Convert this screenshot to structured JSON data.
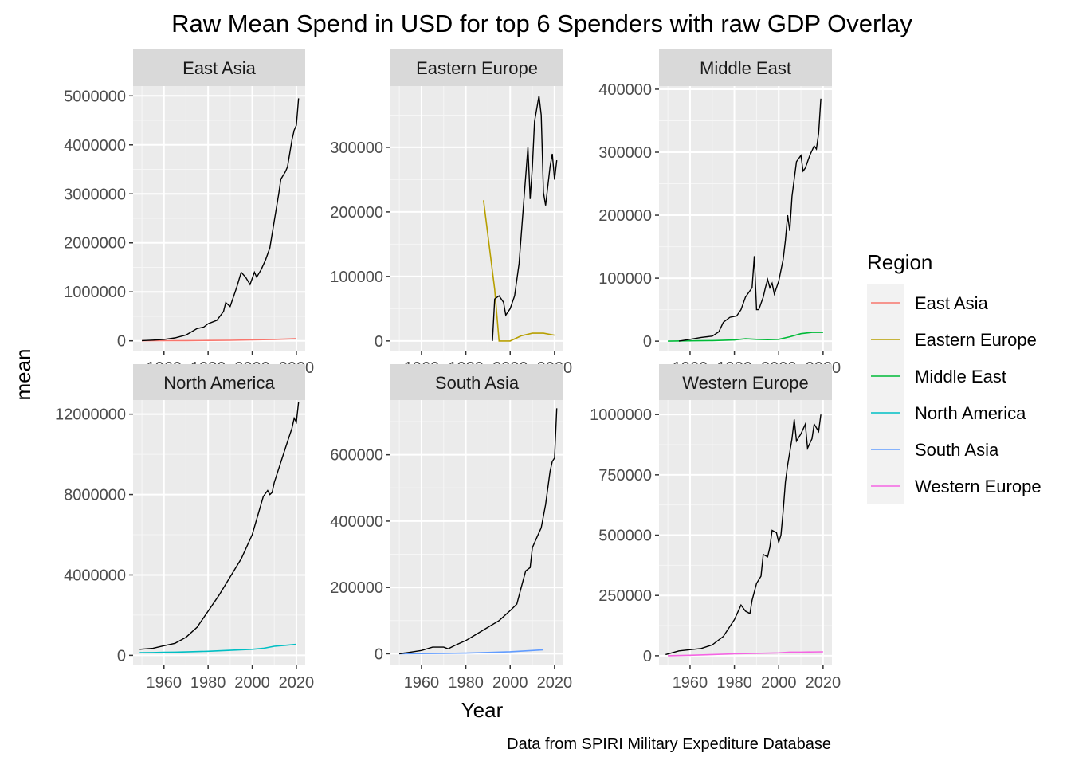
{
  "chart_data": {
    "type": "line",
    "title": "Raw Mean Spend in USD for top 6 Spenders with raw GDP Overlay",
    "xlabel": "Year",
    "ylabel": "mean",
    "caption": "Data from SPIRI Military Expediture Database",
    "legend": {
      "title": "Region",
      "placement": "right",
      "entries": [
        {
          "name": "East Asia",
          "color": "#F8766D"
        },
        {
          "name": "Eastern Europe",
          "color": "#B79F00"
        },
        {
          "name": "Middle East",
          "color": "#00BA38"
        },
        {
          "name": "North America",
          "color": "#00BFC4"
        },
        {
          "name": "South Asia",
          "color": "#619CFF"
        },
        {
          "name": "Western Europe",
          "color": "#F564E3"
        }
      ]
    },
    "x_ticks": [
      1960,
      1980,
      2000,
      2020
    ],
    "xlim": [
      1946,
      2024
    ],
    "grid": true,
    "panels": [
      {
        "name": "East Asia",
        "ylim": [
          -200000,
          5200000
        ],
        "y_ticks": [
          0,
          1000000,
          2000000,
          3000000,
          4000000,
          5000000
        ],
        "y_tick_labels": [
          "0",
          "1000000",
          "2000000",
          "3000000",
          "4000000",
          "5000000"
        ],
        "gdp": [
          [
            1950,
            5000
          ],
          [
            1955,
            15000
          ],
          [
            1960,
            30000
          ],
          [
            1965,
            60000
          ],
          [
            1970,
            120000
          ],
          [
            1975,
            250000
          ],
          [
            1978,
            280000
          ],
          [
            1980,
            350000
          ],
          [
            1984,
            420000
          ],
          [
            1987,
            600000
          ],
          [
            1988,
            780000
          ],
          [
            1990,
            700000
          ],
          [
            1993,
            1100000
          ],
          [
            1995,
            1400000
          ],
          [
            1997,
            1300000
          ],
          [
            1999,
            1150000
          ],
          [
            2001,
            1400000
          ],
          [
            2002,
            1300000
          ],
          [
            2004,
            1450000
          ],
          [
            2006,
            1650000
          ],
          [
            2008,
            1900000
          ],
          [
            2010,
            2450000
          ],
          [
            2012,
            3000000
          ],
          [
            2013,
            3300000
          ],
          [
            2015,
            3450000
          ],
          [
            2016,
            3550000
          ],
          [
            2018,
            4100000
          ],
          [
            2019,
            4300000
          ],
          [
            2020,
            4400000
          ],
          [
            2021,
            4950000
          ]
        ],
        "spend": [
          [
            1950,
            2000
          ],
          [
            1960,
            3000
          ],
          [
            1970,
            5000
          ],
          [
            1980,
            8000
          ],
          [
            1990,
            12000
          ],
          [
            2000,
            20000
          ],
          [
            2010,
            30000
          ],
          [
            2020,
            45000
          ]
        ],
        "spend_color": "#F8766D"
      },
      {
        "name": "Eastern Europe",
        "ylim": [
          -15000,
          395000
        ],
        "y_ticks": [
          0,
          100000,
          200000,
          300000
        ],
        "y_tick_labels": [
          "0",
          "100000",
          "200000",
          "300000"
        ],
        "gdp": [
          [
            1992,
            0
          ],
          [
            1993,
            65000
          ],
          [
            1995,
            70000
          ],
          [
            1997,
            60000
          ],
          [
            1998,
            40000
          ],
          [
            2000,
            50000
          ],
          [
            2002,
            70000
          ],
          [
            2004,
            120000
          ],
          [
            2006,
            210000
          ],
          [
            2008,
            300000
          ],
          [
            2009,
            220000
          ],
          [
            2010,
            270000
          ],
          [
            2011,
            340000
          ],
          [
            2013,
            380000
          ],
          [
            2014,
            350000
          ],
          [
            2015,
            230000
          ],
          [
            2016,
            210000
          ],
          [
            2018,
            270000
          ],
          [
            2019,
            290000
          ],
          [
            2020,
            250000
          ],
          [
            2021,
            280000
          ]
        ],
        "spend": [
          [
            1988,
            218000
          ],
          [
            1993,
            80000
          ],
          [
            1995,
            0
          ],
          [
            1998,
            0
          ],
          [
            2000,
            0
          ],
          [
            2005,
            8000
          ],
          [
            2010,
            12000
          ],
          [
            2015,
            12000
          ],
          [
            2020,
            9000
          ]
        ],
        "spend_color": "#B79F00"
      },
      {
        "name": "Middle East",
        "ylim": [
          -15000,
          405000
        ],
        "y_ticks": [
          0,
          100000,
          200000,
          300000,
          400000
        ],
        "y_tick_labels": [
          "0",
          "100000",
          "200000",
          "300000",
          "400000"
        ],
        "gdp": [
          [
            1955,
            0
          ],
          [
            1960,
            3000
          ],
          [
            1965,
            6000
          ],
          [
            1970,
            8000
          ],
          [
            1973,
            15000
          ],
          [
            1975,
            30000
          ],
          [
            1978,
            38000
          ],
          [
            1981,
            40000
          ],
          [
            1983,
            50000
          ],
          [
            1985,
            70000
          ],
          [
            1987,
            80000
          ],
          [
            1988,
            85000
          ],
          [
            1989,
            135000
          ],
          [
            1990,
            50000
          ],
          [
            1991,
            50000
          ],
          [
            1993,
            70000
          ],
          [
            1994,
            85000
          ],
          [
            1995,
            98000
          ],
          [
            1996,
            85000
          ],
          [
            1997,
            92000
          ],
          [
            1998,
            75000
          ],
          [
            2000,
            95000
          ],
          [
            2002,
            130000
          ],
          [
            2003,
            160000
          ],
          [
            2004,
            200000
          ],
          [
            2005,
            175000
          ],
          [
            2006,
            230000
          ],
          [
            2008,
            285000
          ],
          [
            2010,
            295000
          ],
          [
            2011,
            270000
          ],
          [
            2012,
            275000
          ],
          [
            2014,
            295000
          ],
          [
            2016,
            310000
          ],
          [
            2017,
            305000
          ],
          [
            2018,
            330000
          ],
          [
            2019,
            385000
          ]
        ],
        "spend": [
          [
            1950,
            0
          ],
          [
            1960,
            500
          ],
          [
            1970,
            1000
          ],
          [
            1980,
            2000
          ],
          [
            1985,
            4000
          ],
          [
            1990,
            3000
          ],
          [
            1995,
            2500
          ],
          [
            2000,
            3000
          ],
          [
            2005,
            7000
          ],
          [
            2010,
            12000
          ],
          [
            2015,
            14000
          ],
          [
            2020,
            14000
          ]
        ],
        "spend_color": "#00BA38"
      },
      {
        "name": "North America",
        "ylim": [
          -500000,
          12700000
        ],
        "y_ticks": [
          0,
          4000000,
          8000000,
          12000000
        ],
        "y_tick_labels": [
          "0",
          "4000000",
          "8000000",
          "12000000"
        ],
        "gdp": [
          [
            1949,
            300000
          ],
          [
            1955,
            350000
          ],
          [
            1960,
            480000
          ],
          [
            1965,
            600000
          ],
          [
            1970,
            900000
          ],
          [
            1975,
            1400000
          ],
          [
            1980,
            2200000
          ],
          [
            1985,
            3000000
          ],
          [
            1990,
            3900000
          ],
          [
            1995,
            4800000
          ],
          [
            2000,
            6000000
          ],
          [
            2005,
            7900000
          ],
          [
            2007,
            8200000
          ],
          [
            2008,
            8000000
          ],
          [
            2009,
            8100000
          ],
          [
            2010,
            8600000
          ],
          [
            2015,
            10300000
          ],
          [
            2018,
            11300000
          ],
          [
            2019,
            11800000
          ],
          [
            2020,
            11600000
          ],
          [
            2021,
            12600000
          ]
        ],
        "spend": [
          [
            1949,
            130000
          ],
          [
            1955,
            140000
          ],
          [
            1960,
            150000
          ],
          [
            1965,
            160000
          ],
          [
            1970,
            170000
          ],
          [
            1980,
            200000
          ],
          [
            1990,
            250000
          ],
          [
            2000,
            300000
          ],
          [
            2005,
            350000
          ],
          [
            2010,
            450000
          ],
          [
            2015,
            500000
          ],
          [
            2020,
            550000
          ]
        ],
        "spend_color": "#00BFC4"
      },
      {
        "name": "South Asia",
        "ylim": [
          -35000,
          765000
        ],
        "y_ticks": [
          0,
          200000,
          400000,
          600000
        ],
        "y_tick_labels": [
          "0",
          "200000",
          "400000",
          "600000"
        ],
        "gdp": [
          [
            1950,
            0
          ],
          [
            1955,
            5000
          ],
          [
            1960,
            10000
          ],
          [
            1965,
            20000
          ],
          [
            1970,
            20000
          ],
          [
            1972,
            15000
          ],
          [
            1975,
            25000
          ],
          [
            1980,
            40000
          ],
          [
            1985,
            60000
          ],
          [
            1990,
            80000
          ],
          [
            1995,
            100000
          ],
          [
            2000,
            130000
          ],
          [
            2003,
            150000
          ],
          [
            2005,
            200000
          ],
          [
            2007,
            250000
          ],
          [
            2009,
            260000
          ],
          [
            2010,
            320000
          ],
          [
            2012,
            350000
          ],
          [
            2014,
            380000
          ],
          [
            2016,
            450000
          ],
          [
            2018,
            550000
          ],
          [
            2019,
            580000
          ],
          [
            2020,
            590000
          ],
          [
            2021,
            740000
          ]
        ],
        "spend": [
          [
            1950,
            0
          ],
          [
            1960,
            500
          ],
          [
            1970,
            1000
          ],
          [
            1980,
            2000
          ],
          [
            1990,
            4000
          ],
          [
            2000,
            6000
          ],
          [
            2010,
            10000
          ],
          [
            2015,
            12000
          ]
        ],
        "spend_color": "#619CFF"
      },
      {
        "name": "Western Europe",
        "ylim": [
          -40000,
          1060000
        ],
        "y_ticks": [
          0,
          250000,
          500000,
          750000,
          1000000
        ],
        "y_tick_labels": [
          "0",
          "250000",
          "500000",
          "750000",
          "1000000"
        ],
        "gdp": [
          [
            1949,
            5000
          ],
          [
            1955,
            20000
          ],
          [
            1960,
            25000
          ],
          [
            1965,
            30000
          ],
          [
            1970,
            45000
          ],
          [
            1975,
            80000
          ],
          [
            1980,
            150000
          ],
          [
            1983,
            210000
          ],
          [
            1985,
            185000
          ],
          [
            1987,
            175000
          ],
          [
            1988,
            230000
          ],
          [
            1990,
            300000
          ],
          [
            1992,
            330000
          ],
          [
            1993,
            420000
          ],
          [
            1995,
            410000
          ],
          [
            1996,
            450000
          ],
          [
            1997,
            520000
          ],
          [
            1999,
            510000
          ],
          [
            2000,
            470000
          ],
          [
            2001,
            500000
          ],
          [
            2002,
            600000
          ],
          [
            2003,
            720000
          ],
          [
            2004,
            790000
          ],
          [
            2006,
            900000
          ],
          [
            2007,
            980000
          ],
          [
            2008,
            890000
          ],
          [
            2010,
            920000
          ],
          [
            2012,
            960000
          ],
          [
            2013,
            860000
          ],
          [
            2015,
            900000
          ],
          [
            2016,
            960000
          ],
          [
            2018,
            930000
          ],
          [
            2019,
            1000000
          ]
        ],
        "spend": [
          [
            1950,
            0
          ],
          [
            1960,
            2000
          ],
          [
            1970,
            5000
          ],
          [
            1980,
            8000
          ],
          [
            1990,
            10000
          ],
          [
            2000,
            12000
          ],
          [
            2005,
            15000
          ],
          [
            2010,
            15000
          ],
          [
            2020,
            16000
          ]
        ],
        "spend_color": "#F564E3"
      }
    ]
  }
}
